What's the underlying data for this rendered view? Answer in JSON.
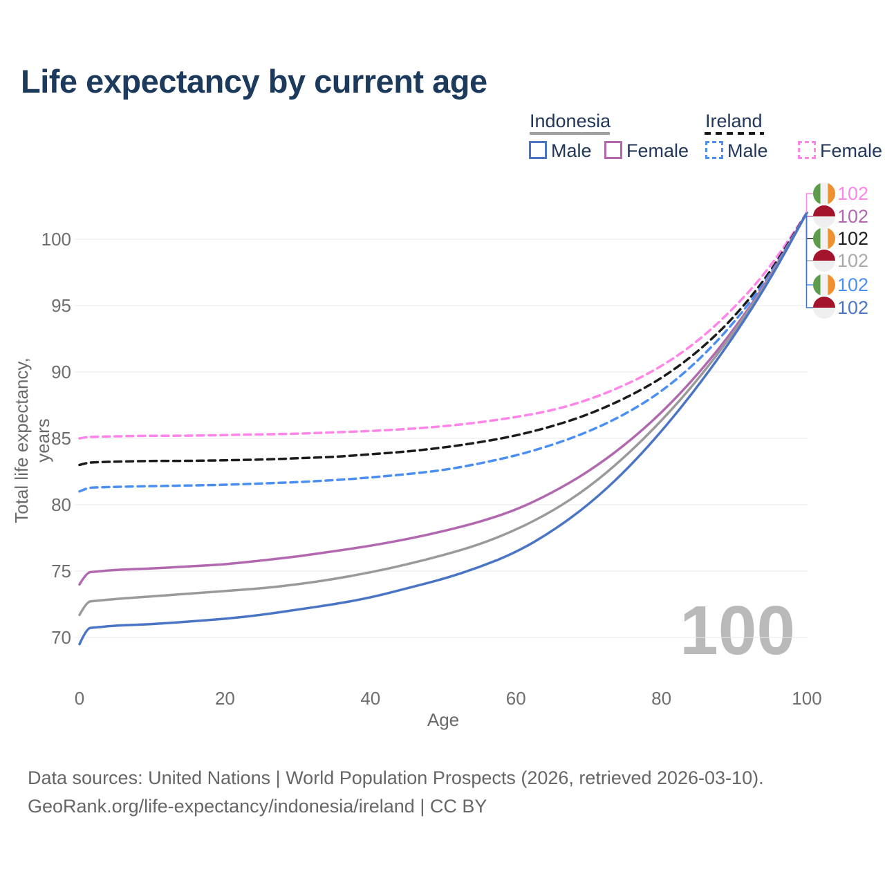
{
  "title": "Life expectancy by current age",
  "watermark": "100",
  "legend": {
    "groups": [
      {
        "country": "Indonesia",
        "style": "solid",
        "underline_color": "#9e9e9e",
        "items": [
          {
            "label": "Male",
            "color": "#4a75c5"
          },
          {
            "label": "Female",
            "color": "#b168af"
          }
        ]
      },
      {
        "country": "Ireland",
        "style": "dashed",
        "underline_color": "#1b1b1b",
        "items": [
          {
            "label": "Male",
            "color": "#4b8ff2"
          },
          {
            "label": "Female",
            "color": "#ff85e8"
          }
        ]
      }
    ]
  },
  "footer": {
    "line1": "Data sources: United Nations | World Population Prospects (2026, retrieved 2026-03-10).",
    "line2": "GeoRank.org/life-expectancy/indonesia/ireland | CC BY"
  },
  "chart_data": {
    "type": "line",
    "title": "Life expectancy by current age",
    "xlabel": "Age",
    "ylabel": "Total life expectancy, years",
    "xlim": [
      0,
      100
    ],
    "ylim": [
      67,
      104
    ],
    "x_ticks": [
      0,
      20,
      40,
      60,
      80,
      100
    ],
    "y_ticks": [
      70,
      75,
      80,
      85,
      90,
      95,
      100
    ],
    "grid": "horizontal",
    "legend_position": "top-right",
    "hover_age_label": "100",
    "x": [
      0,
      1,
      2,
      5,
      10,
      15,
      20,
      25,
      30,
      35,
      40,
      45,
      50,
      55,
      60,
      65,
      70,
      75,
      80,
      85,
      90,
      95,
      100
    ],
    "series": [
      {
        "name": "Ireland Female",
        "country": "Ireland",
        "sex": "Female",
        "style": "dashed",
        "color": "#ff85e8",
        "values": [
          85.0,
          85.1,
          85.12,
          85.15,
          85.2,
          85.2,
          85.25,
          85.3,
          85.35,
          85.45,
          85.55,
          85.7,
          85.9,
          86.2,
          86.6,
          87.1,
          87.9,
          89.0,
          90.4,
          92.3,
          94.8,
          97.9,
          102
        ]
      },
      {
        "name": "Ireland",
        "country": "Ireland",
        "sex": "Both",
        "style": "dashed",
        "color": "#1b1b1b",
        "values": [
          83.0,
          83.15,
          83.2,
          83.25,
          83.3,
          83.3,
          83.35,
          83.4,
          83.5,
          83.6,
          83.8,
          84.0,
          84.3,
          84.7,
          85.2,
          85.9,
          86.8,
          88.0,
          89.5,
          91.5,
          94.1,
          97.5,
          102
        ]
      },
      {
        "name": "Ireland Male",
        "country": "Ireland",
        "sex": "Male",
        "style": "dashed",
        "color": "#4b8ff2",
        "values": [
          81.0,
          81.25,
          81.3,
          81.35,
          81.4,
          81.45,
          81.5,
          81.6,
          81.7,
          81.85,
          82.05,
          82.3,
          82.6,
          83.1,
          83.7,
          84.5,
          85.5,
          86.8,
          88.5,
          90.8,
          93.7,
          97.3,
          102
        ]
      },
      {
        "name": "Indonesia Female",
        "country": "Indonesia",
        "sex": "Female",
        "style": "solid",
        "color": "#b168af",
        "values": [
          74.0,
          74.9,
          74.95,
          75.1,
          75.2,
          75.35,
          75.5,
          75.8,
          76.1,
          76.5,
          76.9,
          77.4,
          78.0,
          78.7,
          79.6,
          80.9,
          82.5,
          84.5,
          86.9,
          89.8,
          93.2,
          97.2,
          102
        ]
      },
      {
        "name": "Indonesia",
        "country": "Indonesia",
        "sex": "Both",
        "style": "solid",
        "color": "#9a9a9a",
        "values": [
          71.7,
          72.7,
          72.75,
          72.9,
          73.1,
          73.3,
          73.5,
          73.7,
          74.0,
          74.4,
          74.9,
          75.5,
          76.2,
          77.0,
          78.1,
          79.5,
          81.3,
          83.6,
          86.3,
          89.4,
          93.0,
          97.1,
          102
        ]
      },
      {
        "name": "Indonesia Male",
        "country": "Indonesia",
        "sex": "Male",
        "style": "solid",
        "color": "#4a75c5",
        "values": [
          69.5,
          70.7,
          70.75,
          70.9,
          71.0,
          71.2,
          71.4,
          71.7,
          72.1,
          72.5,
          73.0,
          73.7,
          74.4,
          75.3,
          76.4,
          78.0,
          80.0,
          82.5,
          85.5,
          88.9,
          92.7,
          97.0,
          102
        ]
      }
    ],
    "end_labels": [
      {
        "series": "Ireland Female",
        "flag": "ireland",
        "value": "102",
        "color": "#ff85e8"
      },
      {
        "series": "Indonesia Female",
        "flag": "indonesia",
        "value": "102",
        "color": "#b168af"
      },
      {
        "series": "Ireland",
        "flag": "ireland",
        "value": "102",
        "color": "#1e1e1e"
      },
      {
        "series": "Indonesia",
        "flag": "indonesia",
        "value": "102",
        "color": "#a9a9a9"
      },
      {
        "series": "Ireland Male",
        "flag": "ireland",
        "value": "102",
        "color": "#4b8ff2"
      },
      {
        "series": "Indonesia Male",
        "flag": "indonesia",
        "value": "102",
        "color": "#4a75c5"
      }
    ],
    "flag_colors": {
      "ireland": [
        "#5d9c4a",
        "#f2f2f2",
        "#f0902e"
      ],
      "indonesia": [
        "#a3132b",
        "#efefef"
      ]
    }
  },
  "colors": {
    "title": "#1c3a5c",
    "axis_text": "#6e6e6e",
    "gridline": "#eaeaea",
    "watermark": "#b9b9b9",
    "footer_text": "#666666"
  }
}
